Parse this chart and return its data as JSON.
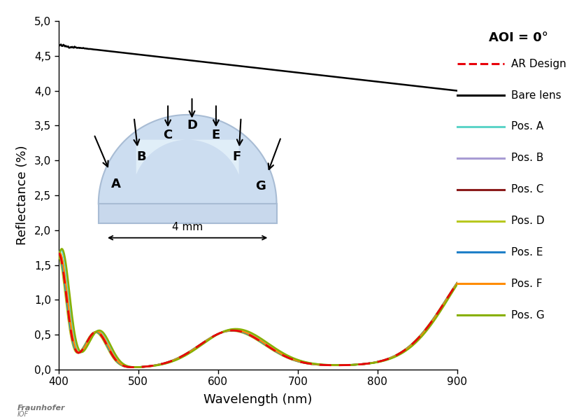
{
  "title": "AOI = 0°",
  "xlabel": "Wavelength (nm)",
  "ylabel": "Reflectance (%)",
  "xlim": [
    400,
    900
  ],
  "ylim": [
    0.0,
    5.0
  ],
  "yticks": [
    0.0,
    0.5,
    1.0,
    1.5,
    2.0,
    2.5,
    3.0,
    3.5,
    4.0,
    4.5,
    5.0
  ],
  "xticks": [
    400,
    500,
    600,
    700,
    800,
    900
  ],
  "background_color": "#ffffff",
  "bare_lens_color": "#000000",
  "ar_design_color": "#e8000a",
  "pos_colors": {
    "A": "#5dd4c8",
    "B": "#a89cd4",
    "C": "#8b1a1a",
    "D": "#b8c820",
    "E": "#2080c8",
    "F": "#ff8c00",
    "G": "#88b000"
  },
  "lens_fill": "#ccddf0",
  "lens_edge": "#a8bcd4",
  "lens_highlight": "#e8f4fc",
  "lens_base_fill": "#c8d8ec"
}
